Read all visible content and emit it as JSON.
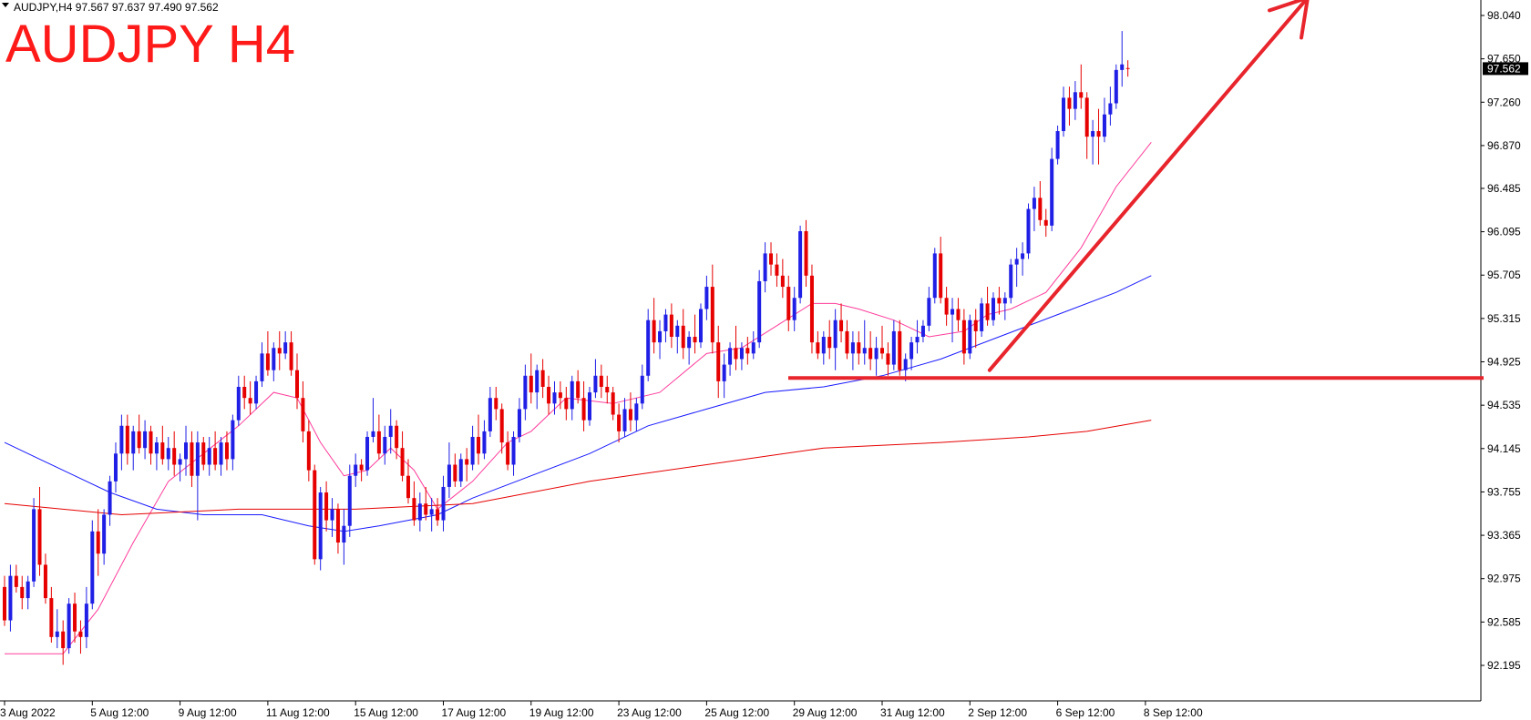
{
  "header": {
    "symbol_line": "AUDJPY,H4  97.567 97.637 97.490 97.562",
    "dropdown_icon": "triangle-down-icon"
  },
  "title": "AUDJPY H4",
  "current_price_label": "97.562",
  "colors": {
    "bull": "#1f1fe6",
    "bear": "#e60000",
    "ma_fast": "#ff3c9a",
    "ma_mid": "#1a1aff",
    "ma_slow": "#e60000",
    "annotation": "#e8242c",
    "title": "#ff1a1a",
    "price_tag_bg": "#000000"
  },
  "chart_data": {
    "type": "candlestick",
    "symbol": "AUDJPY",
    "timeframe": "H4",
    "ylim": [
      92.0,
      98.2
    ],
    "y_ticks": [
      "98.040",
      "97.650",
      "97.260",
      "96.870",
      "96.485",
      "96.095",
      "95.705",
      "95.315",
      "94.925",
      "94.535",
      "94.145",
      "93.755",
      "93.365",
      "92.975",
      "92.585",
      "92.195"
    ],
    "x_ticks": [
      "3 Aug 2022",
      "5 Aug 12:00",
      "9 Aug 12:00",
      "11 Aug 12:00",
      "15 Aug 12:00",
      "17 Aug 12:00",
      "19 Aug 12:00",
      "23 Aug 12:00",
      "25 Aug 12:00",
      "29 Aug 12:00",
      "31 Aug 12:00",
      "2 Sep 12:00",
      "6 Sep 12:00",
      "8 Sep 12:00"
    ],
    "x_tick_bars": [
      0,
      15,
      30,
      45,
      60,
      75,
      90,
      105,
      120,
      135,
      150,
      165,
      180,
      195
    ],
    "bar_count": 200,
    "candles": [
      [
        92.9,
        93.0,
        92.55,
        92.6
      ],
      [
        92.6,
        93.1,
        92.5,
        93.0
      ],
      [
        93.0,
        93.1,
        92.85,
        92.9
      ],
      [
        92.9,
        93.0,
        92.7,
        92.8
      ],
      [
        92.8,
        93.0,
        92.7,
        92.95
      ],
      [
        92.95,
        93.7,
        92.9,
        93.6
      ],
      [
        93.6,
        93.8,
        93.0,
        93.1
      ],
      [
        93.1,
        93.2,
        92.75,
        92.8
      ],
      [
        92.8,
        92.9,
        92.4,
        92.45
      ],
      [
        92.45,
        92.7,
        92.35,
        92.5
      ],
      [
        92.5,
        92.6,
        92.2,
        92.35
      ],
      [
        92.35,
        92.8,
        92.3,
        92.75
      ],
      [
        92.75,
        92.85,
        92.4,
        92.5
      ],
      [
        92.5,
        92.6,
        92.3,
        92.45
      ],
      [
        92.45,
        92.9,
        92.35,
        92.75
      ],
      [
        92.75,
        93.5,
        92.7,
        93.4
      ],
      [
        93.4,
        93.6,
        93.0,
        93.2
      ],
      [
        93.2,
        93.6,
        93.1,
        93.55
      ],
      [
        93.55,
        93.9,
        93.45,
        93.85
      ],
      [
        93.85,
        94.2,
        93.75,
        94.1
      ],
      [
        94.1,
        94.45,
        93.95,
        94.35
      ],
      [
        94.35,
        94.45,
        94.0,
        94.1
      ],
      [
        94.1,
        94.35,
        93.95,
        94.3
      ],
      [
        94.3,
        94.45,
        94.1,
        94.15
      ],
      [
        94.15,
        94.4,
        94.05,
        94.3
      ],
      [
        94.3,
        94.35,
        94.0,
        94.1
      ],
      [
        94.1,
        94.25,
        93.95,
        94.2
      ],
      [
        94.2,
        94.35,
        94.0,
        94.05
      ],
      [
        94.05,
        94.25,
        93.95,
        94.15
      ],
      [
        94.15,
        94.3,
        93.9,
        94.0
      ],
      [
        94.0,
        94.1,
        93.85,
        94.05
      ],
      [
        94.05,
        94.35,
        93.9,
        94.2
      ],
      [
        94.2,
        94.3,
        93.8,
        93.9
      ],
      [
        93.9,
        94.3,
        93.5,
        94.2
      ],
      [
        94.2,
        94.25,
        93.95,
        94.0
      ],
      [
        94.0,
        94.25,
        93.9,
        94.15
      ],
      [
        94.15,
        94.3,
        93.95,
        94.0
      ],
      [
        94.0,
        94.25,
        93.9,
        94.2
      ],
      [
        94.2,
        94.3,
        93.95,
        94.05
      ],
      [
        94.05,
        94.45,
        93.95,
        94.4
      ],
      [
        94.4,
        94.8,
        94.35,
        94.7
      ],
      [
        94.7,
        94.8,
        94.5,
        94.6
      ],
      [
        94.6,
        94.75,
        94.45,
        94.55
      ],
      [
        94.55,
        94.8,
        94.5,
        94.75
      ],
      [
        94.75,
        95.1,
        94.7,
        95.0
      ],
      [
        95.0,
        95.2,
        94.8,
        94.85
      ],
      [
        94.85,
        95.1,
        94.75,
        95.05
      ],
      [
        95.05,
        95.2,
        94.85,
        95.0
      ],
      [
        95.0,
        95.2,
        94.95,
        95.1
      ],
      [
        95.1,
        95.2,
        94.8,
        94.85
      ],
      [
        94.85,
        95.0,
        94.5,
        94.6
      ],
      [
        94.6,
        94.75,
        94.2,
        94.3
      ],
      [
        94.3,
        94.4,
        93.85,
        93.95
      ],
      [
        93.95,
        94.0,
        93.1,
        93.15
      ],
      [
        93.15,
        93.8,
        93.05,
        93.75
      ],
      [
        93.75,
        93.85,
        93.4,
        93.5
      ],
      [
        93.5,
        93.7,
        93.35,
        93.6
      ],
      [
        93.6,
        93.65,
        93.2,
        93.3
      ],
      [
        93.3,
        93.6,
        93.1,
        93.45
      ],
      [
        93.45,
        94.0,
        93.35,
        93.9
      ],
      [
        93.9,
        94.1,
        93.8,
        94.0
      ],
      [
        94.0,
        94.05,
        93.85,
        93.95
      ],
      [
        93.95,
        94.3,
        93.9,
        94.25
      ],
      [
        94.25,
        94.6,
        94.2,
        94.3
      ],
      [
        94.3,
        94.45,
        94.05,
        94.1
      ],
      [
        94.1,
        94.35,
        94.0,
        94.25
      ],
      [
        94.25,
        94.5,
        94.1,
        94.35
      ],
      [
        94.35,
        94.4,
        94.05,
        94.15
      ],
      [
        94.15,
        94.3,
        93.85,
        93.9
      ],
      [
        93.9,
        94.05,
        93.65,
        93.7
      ],
      [
        93.7,
        93.85,
        93.45,
        93.5
      ],
      [
        93.5,
        93.75,
        93.4,
        93.65
      ],
      [
        93.65,
        93.8,
        93.5,
        93.55
      ],
      [
        93.55,
        93.7,
        93.4,
        93.6
      ],
      [
        93.6,
        93.7,
        93.45,
        93.5
      ],
      [
        93.5,
        93.9,
        93.4,
        93.8
      ],
      [
        93.8,
        94.2,
        93.7,
        94.0
      ],
      [
        94.0,
        94.1,
        93.8,
        93.85
      ],
      [
        93.85,
        94.1,
        93.8,
        94.05
      ],
      [
        94.05,
        94.15,
        93.85,
        94.0
      ],
      [
        94.0,
        94.35,
        93.95,
        94.25
      ],
      [
        94.25,
        94.45,
        94.0,
        94.1
      ],
      [
        94.1,
        94.4,
        94.05,
        94.3
      ],
      [
        94.3,
        94.7,
        94.25,
        94.6
      ],
      [
        94.6,
        94.7,
        94.4,
        94.5
      ],
      [
        94.5,
        94.55,
        94.1,
        94.2
      ],
      [
        94.2,
        94.3,
        93.95,
        94.0
      ],
      [
        94.0,
        94.3,
        93.9,
        94.25
      ],
      [
        94.25,
        94.6,
        94.2,
        94.5
      ],
      [
        94.5,
        94.9,
        94.4,
        94.8
      ],
      [
        94.8,
        95.0,
        94.55,
        94.65
      ],
      [
        94.65,
        94.9,
        94.5,
        94.85
      ],
      [
        94.85,
        94.95,
        94.6,
        94.7
      ],
      [
        94.7,
        94.8,
        94.45,
        94.55
      ],
      [
        94.55,
        94.75,
        94.45,
        94.65
      ],
      [
        94.65,
        94.75,
        94.5,
        94.6
      ],
      [
        94.6,
        94.7,
        94.4,
        94.5
      ],
      [
        94.5,
        94.8,
        94.4,
        94.75
      ],
      [
        94.75,
        94.85,
        94.55,
        94.6
      ],
      [
        94.6,
        94.75,
        94.3,
        94.4
      ],
      [
        94.4,
        94.7,
        94.35,
        94.65
      ],
      [
        94.65,
        94.95,
        94.6,
        94.8
      ],
      [
        94.8,
        94.9,
        94.6,
        94.7
      ],
      [
        94.7,
        94.8,
        94.55,
        94.65
      ],
      [
        94.65,
        94.7,
        94.4,
        94.45
      ],
      [
        94.45,
        94.55,
        94.2,
        94.3
      ],
      [
        94.3,
        94.6,
        94.25,
        94.5
      ],
      [
        94.5,
        94.65,
        94.3,
        94.4
      ],
      [
        94.4,
        94.6,
        94.3,
        94.55
      ],
      [
        94.55,
        94.9,
        94.5,
        94.8
      ],
      [
        94.8,
        95.4,
        94.75,
        95.3
      ],
      [
        95.3,
        95.5,
        95.0,
        95.1
      ],
      [
        95.1,
        95.3,
        94.95,
        95.2
      ],
      [
        95.2,
        95.4,
        95.1,
        95.35
      ],
      [
        95.35,
        95.45,
        95.05,
        95.15
      ],
      [
        95.15,
        95.3,
        95.0,
        95.25
      ],
      [
        95.25,
        95.4,
        94.95,
        95.05
      ],
      [
        95.05,
        95.2,
        94.9,
        95.15
      ],
      [
        95.15,
        95.35,
        95.0,
        95.1
      ],
      [
        95.1,
        95.45,
        95.05,
        95.4
      ],
      [
        95.4,
        95.7,
        95.3,
        95.6
      ],
      [
        95.6,
        95.8,
        95.0,
        95.1
      ],
      [
        95.1,
        95.25,
        94.6,
        94.75
      ],
      [
        94.75,
        95.0,
        94.6,
        94.9
      ],
      [
        94.9,
        95.1,
        94.8,
        95.05
      ],
      [
        95.05,
        95.25,
        94.85,
        94.95
      ],
      [
        94.95,
        95.1,
        94.85,
        95.05
      ],
      [
        95.05,
        95.15,
        94.9,
        95.0
      ],
      [
        95.0,
        95.2,
        94.95,
        95.1
      ],
      [
        95.1,
        95.75,
        95.05,
        95.65
      ],
      [
        95.65,
        96.0,
        95.55,
        95.9
      ],
      [
        95.9,
        96.0,
        95.7,
        95.8
      ],
      [
        95.8,
        95.9,
        95.6,
        95.7
      ],
      [
        95.7,
        95.85,
        95.5,
        95.6
      ],
      [
        95.6,
        95.7,
        95.2,
        95.3
      ],
      [
        95.3,
        95.6,
        95.2,
        95.5
      ],
      [
        95.5,
        96.15,
        95.45,
        96.1
      ],
      [
        96.1,
        96.2,
        95.6,
        95.7
      ],
      [
        95.7,
        95.8,
        95.0,
        95.1
      ],
      [
        95.1,
        95.2,
        94.95,
        95.0
      ],
      [
        95.0,
        95.2,
        94.9,
        95.15
      ],
      [
        95.15,
        95.3,
        94.95,
        95.05
      ],
      [
        95.05,
        95.4,
        94.85,
        95.3
      ],
      [
        95.3,
        95.45,
        95.1,
        95.2
      ],
      [
        95.2,
        95.3,
        94.95,
        95.0
      ],
      [
        95.0,
        95.2,
        94.85,
        95.1
      ],
      [
        95.1,
        95.2,
        94.9,
        95.0
      ],
      [
        95.0,
        95.3,
        94.9,
        95.05
      ],
      [
        95.05,
        95.2,
        94.85,
        94.95
      ],
      [
        94.95,
        95.15,
        94.8,
        95.05
      ],
      [
        95.05,
        95.25,
        94.95,
        95.0
      ],
      [
        95.0,
        95.1,
        94.8,
        94.9
      ],
      [
        94.9,
        95.3,
        94.85,
        95.2
      ],
      [
        95.2,
        95.3,
        94.8,
        94.85
      ],
      [
        94.85,
        95.0,
        94.75,
        94.95
      ],
      [
        94.95,
        95.15,
        94.85,
        95.1
      ],
      [
        95.1,
        95.3,
        95.0,
        95.15
      ],
      [
        95.15,
        95.3,
        95.1,
        95.25
      ],
      [
        95.25,
        95.6,
        95.2,
        95.5
      ],
      [
        95.5,
        95.95,
        95.45,
        95.9
      ],
      [
        95.9,
        96.05,
        95.45,
        95.5
      ],
      [
        95.5,
        95.6,
        95.25,
        95.35
      ],
      [
        95.35,
        95.5,
        95.1,
        95.4
      ],
      [
        95.4,
        95.5,
        95.2,
        95.3
      ],
      [
        95.3,
        95.4,
        94.9,
        95.0
      ],
      [
        95.0,
        95.35,
        94.95,
        95.3
      ],
      [
        95.3,
        95.4,
        95.05,
        95.2
      ],
      [
        95.2,
        95.5,
        95.15,
        95.45
      ],
      [
        95.45,
        95.6,
        95.25,
        95.3
      ],
      [
        95.3,
        95.55,
        95.25,
        95.5
      ],
      [
        95.5,
        95.6,
        95.35,
        95.45
      ],
      [
        95.45,
        95.55,
        95.3,
        95.5
      ],
      [
        95.5,
        95.85,
        95.45,
        95.8
      ],
      [
        95.8,
        95.95,
        95.6,
        95.85
      ],
      [
        95.85,
        96.0,
        95.7,
        95.9
      ],
      [
        95.9,
        96.35,
        95.85,
        96.3
      ],
      [
        96.3,
        96.5,
        96.1,
        96.4
      ],
      [
        96.4,
        96.55,
        96.15,
        96.2
      ],
      [
        96.2,
        96.3,
        96.05,
        96.15
      ],
      [
        96.15,
        96.85,
        96.1,
        96.75
      ],
      [
        96.75,
        97.05,
        96.7,
        97.0
      ],
      [
        97.0,
        97.4,
        96.95,
        97.3
      ],
      [
        97.3,
        97.4,
        97.05,
        97.2
      ],
      [
        97.2,
        97.45,
        97.1,
        97.35
      ],
      [
        97.35,
        97.6,
        97.2,
        97.3
      ],
      [
        97.3,
        97.35,
        96.75,
        96.95
      ],
      [
        96.95,
        97.1,
        96.7,
        97.0
      ],
      [
        97.0,
        97.2,
        96.7,
        96.95
      ],
      [
        96.95,
        97.3,
        96.9,
        97.15
      ],
      [
        97.15,
        97.4,
        97.05,
        97.25
      ],
      [
        97.25,
        97.6,
        97.2,
        97.55
      ],
      [
        97.55,
        97.9,
        97.4,
        97.6
      ],
      [
        97.567,
        97.637,
        97.49,
        97.562
      ]
    ],
    "ma_fast": [
      [
        0,
        92.3
      ],
      [
        10,
        92.3
      ],
      [
        16,
        92.7
      ],
      [
        22,
        93.3
      ],
      [
        28,
        93.85
      ],
      [
        34,
        94.1
      ],
      [
        40,
        94.35
      ],
      [
        46,
        94.65
      ],
      [
        50,
        94.6
      ],
      [
        54,
        94.2
      ],
      [
        58,
        93.9
      ],
      [
        62,
        93.95
      ],
      [
        66,
        94.15
      ],
      [
        70,
        93.95
      ],
      [
        74,
        93.6
      ],
      [
        80,
        93.85
      ],
      [
        86,
        94.2
      ],
      [
        90,
        94.3
      ],
      [
        96,
        94.6
      ],
      [
        104,
        94.55
      ],
      [
        112,
        94.65
      ],
      [
        120,
        95.0
      ],
      [
        126,
        95.05
      ],
      [
        132,
        95.25
      ],
      [
        138,
        95.45
      ],
      [
        142,
        95.45
      ],
      [
        146,
        95.4
      ],
      [
        152,
        95.3
      ],
      [
        158,
        95.15
      ],
      [
        164,
        95.2
      ],
      [
        168,
        95.35
      ],
      [
        172,
        95.4
      ],
      [
        178,
        95.55
      ],
      [
        184,
        95.95
      ],
      [
        190,
        96.5
      ],
      [
        196,
        96.9
      ]
    ],
    "ma_mid": [
      [
        0,
        94.2
      ],
      [
        6,
        94.05
      ],
      [
        12,
        93.9
      ],
      [
        18,
        93.75
      ],
      [
        26,
        93.6
      ],
      [
        34,
        93.55
      ],
      [
        44,
        93.55
      ],
      [
        52,
        93.45
      ],
      [
        58,
        93.4
      ],
      [
        64,
        93.45
      ],
      [
        74,
        93.55
      ],
      [
        80,
        93.7
      ],
      [
        90,
        93.9
      ],
      [
        100,
        94.1
      ],
      [
        110,
        94.35
      ],
      [
        120,
        94.5
      ],
      [
        130,
        94.65
      ],
      [
        140,
        94.7
      ],
      [
        150,
        94.8
      ],
      [
        160,
        94.95
      ],
      [
        170,
        95.15
      ],
      [
        180,
        95.35
      ],
      [
        190,
        95.55
      ],
      [
        196,
        95.7
      ]
    ],
    "ma_slow": [
      [
        0,
        93.65
      ],
      [
        20,
        93.55
      ],
      [
        40,
        93.6
      ],
      [
        60,
        93.6
      ],
      [
        80,
        93.65
      ],
      [
        100,
        93.85
      ],
      [
        120,
        94.0
      ],
      [
        140,
        94.15
      ],
      [
        160,
        94.2
      ],
      [
        175,
        94.25
      ],
      [
        185,
        94.3
      ],
      [
        196,
        94.4
      ]
    ],
    "annotations": {
      "support_level": 94.78,
      "arrow_from": [
        164,
        94.85
      ],
      "arrow_to": [
        219,
        98.2
      ]
    }
  }
}
